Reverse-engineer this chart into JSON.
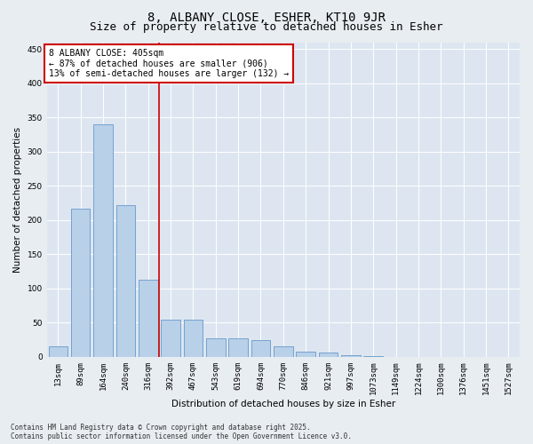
{
  "title": "8, ALBANY CLOSE, ESHER, KT10 9JR",
  "subtitle": "Size of property relative to detached houses in Esher",
  "xlabel": "Distribution of detached houses by size in Esher",
  "ylabel": "Number of detached properties",
  "categories": [
    "13sqm",
    "89sqm",
    "164sqm",
    "240sqm",
    "316sqm",
    "392sqm",
    "467sqm",
    "543sqm",
    "619sqm",
    "694sqm",
    "770sqm",
    "846sqm",
    "921sqm",
    "997sqm",
    "1073sqm",
    "1149sqm",
    "1224sqm",
    "1300sqm",
    "1376sqm",
    "1451sqm",
    "1527sqm"
  ],
  "values": [
    16,
    217,
    340,
    222,
    113,
    54,
    54,
    27,
    27,
    25,
    16,
    8,
    6,
    2,
    1,
    0,
    0,
    0,
    0,
    0,
    0
  ],
  "bar_color": "#b8d0e8",
  "bar_edge_color": "#6699cc",
  "vline_x_index": 4.5,
  "vline_color": "#cc0000",
  "annotation_text": "8 ALBANY CLOSE: 405sqm\n← 87% of detached houses are smaller (906)\n13% of semi-detached houses are larger (132) →",
  "annotation_box_color": "#cc0000",
  "ylim": [
    0,
    460
  ],
  "yticks": [
    0,
    50,
    100,
    150,
    200,
    250,
    300,
    350,
    400,
    450
  ],
  "bg_color": "#e8edf2",
  "plot_bg_color": "#dde6f0",
  "grid_color": "#ffffff",
  "footer_text": "Contains HM Land Registry data © Crown copyright and database right 2025.\nContains public sector information licensed under the Open Government Licence v3.0.",
  "title_fontsize": 10,
  "subtitle_fontsize": 9,
  "tick_fontsize": 6.5,
  "label_fontsize": 7.5,
  "annotation_fontsize": 7,
  "footer_fontsize": 5.5
}
